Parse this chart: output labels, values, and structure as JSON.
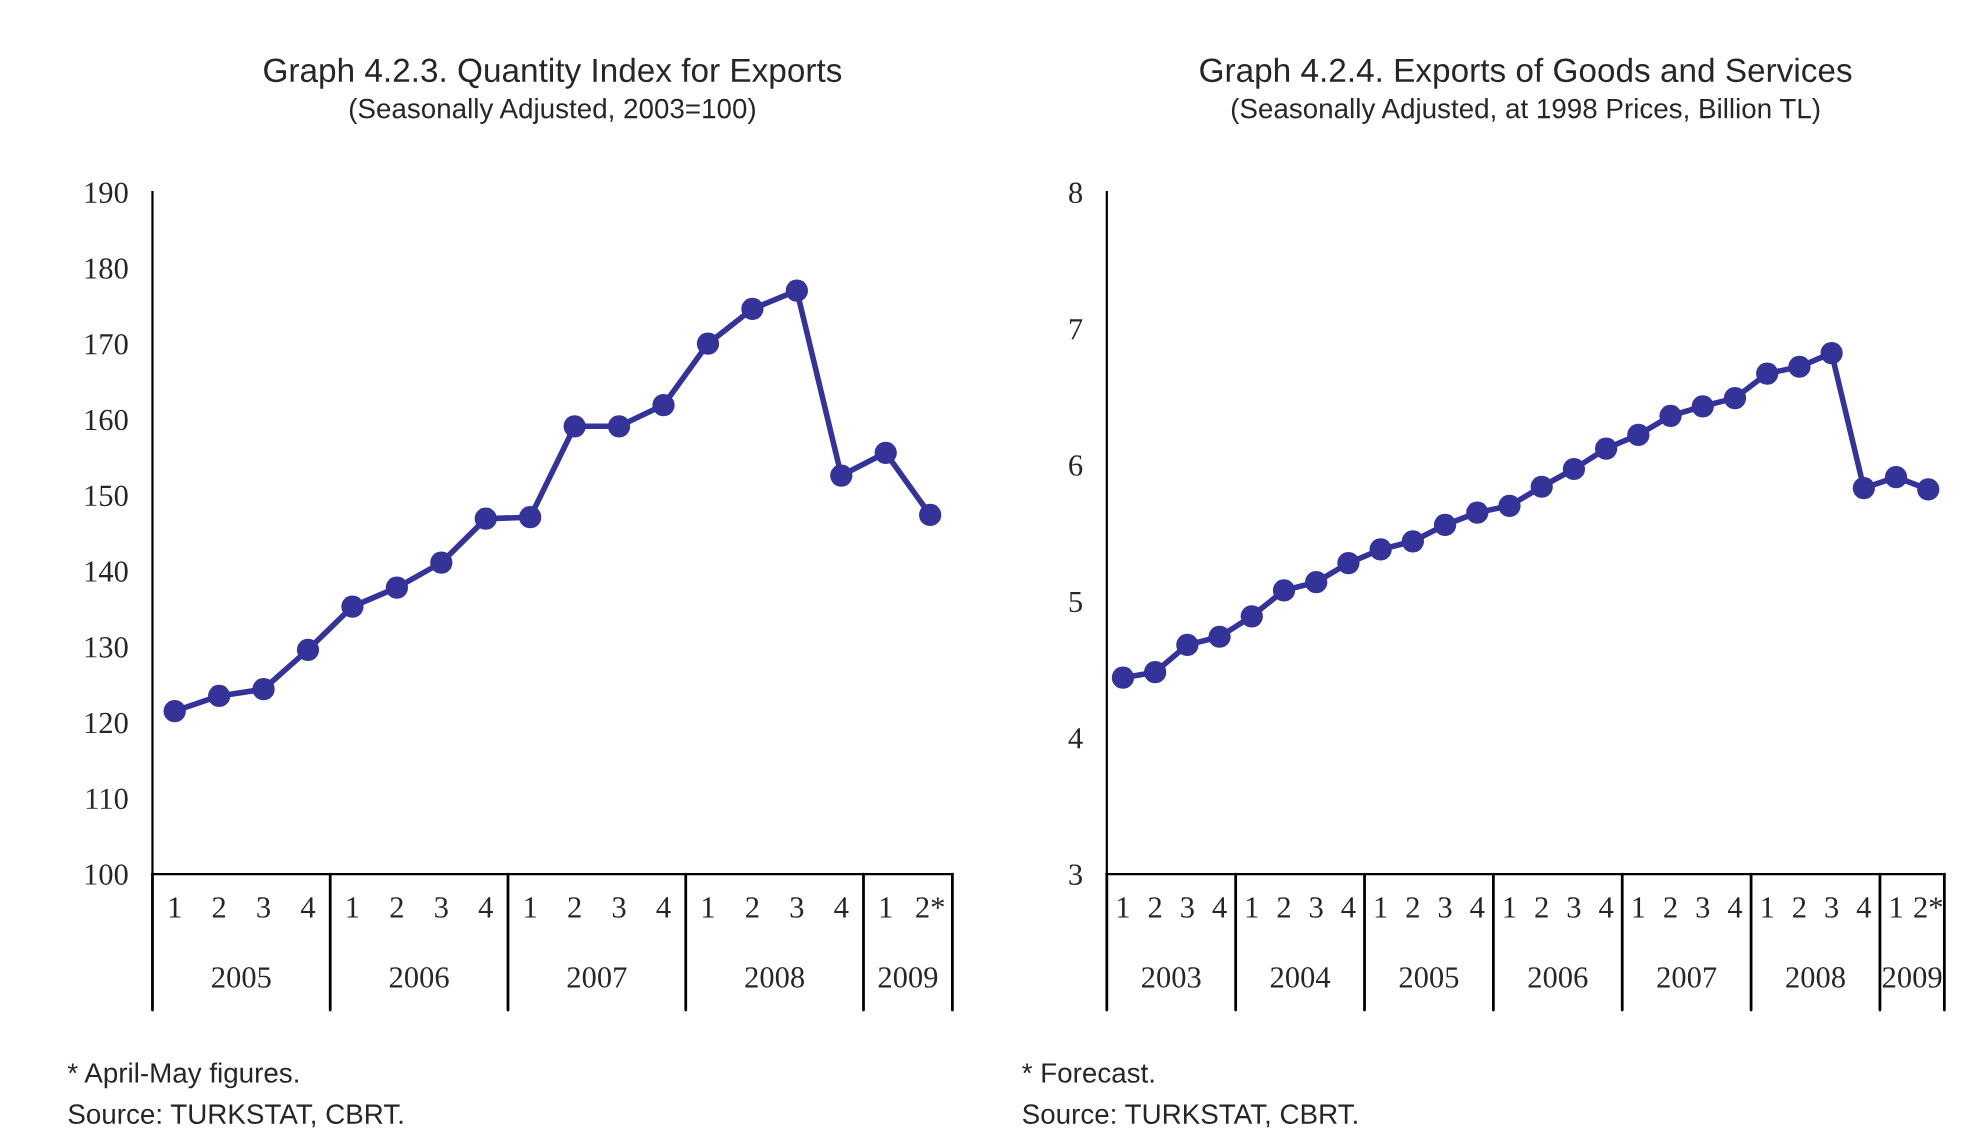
{
  "chart_data": [
    {
      "type": "line",
      "title": "Graph 4.2.3. Quantity Index for Exports",
      "subtitle": "(Seasonally Adjusted, 2003=100)",
      "categories": [
        "1",
        "2",
        "3",
        "4",
        "1",
        "2",
        "3",
        "4",
        "1",
        "2",
        "3",
        "4",
        "1",
        "2",
        "3",
        "4",
        "1",
        "2*"
      ],
      "series": [
        {
          "color": "#333399",
          "values": [
            121.5,
            123.5,
            124.4,
            129.6,
            135.3,
            137.8,
            141.1,
            146.9,
            147.1,
            159.1,
            159.1,
            161.9,
            170.0,
            174.6,
            177.0,
            152.6,
            155.6,
            147.4
          ]
        }
      ],
      "ylim": [
        100,
        190
      ],
      "yticks": [
        100,
        110,
        120,
        130,
        140,
        150,
        160,
        170,
        180,
        190
      ],
      "marker": "circle",
      "line_style": "solid",
      "grid": false,
      "annotations": [
        "2005",
        "2006",
        "2007",
        "2008",
        "2009",
        "* April-May figures.",
        "Source: TURKSTAT, CBRT."
      ]
    },
    {
      "type": "line",
      "title": "Graph 4.2.4. Exports of Goods and Services",
      "subtitle": "(Seasonally Adjusted, at 1998 Prices, Billion TL)",
      "categories": [
        "1",
        "2",
        "3",
        "4",
        "1",
        "2",
        "3",
        "4",
        "1",
        "2",
        "3",
        "4",
        "1",
        "2",
        "3",
        "4",
        "1",
        "2",
        "3",
        "4",
        "1",
        "2",
        "3",
        "4",
        "1",
        "2*"
      ],
      "series": [
        {
          "color": "#333399",
          "values": [
            4.44,
            4.48,
            4.68,
            4.74,
            4.89,
            5.08,
            5.14,
            5.28,
            5.38,
            5.44,
            5.56,
            5.65,
            5.7,
            5.84,
            5.97,
            6.12,
            6.22,
            6.36,
            6.43,
            6.49,
            6.67,
            6.72,
            6.82,
            5.83,
            5.91,
            5.82
          ]
        }
      ],
      "ylim": [
        3,
        8
      ],
      "yticks": [
        3,
        4,
        5,
        6,
        7,
        8
      ],
      "marker": "circle",
      "line_style": "solid",
      "grid": false,
      "annotations": [
        "2003",
        "2004",
        "2005",
        "2006",
        "2007",
        "2008",
        "2009",
        "* Forecast.",
        "Source: TURKSTAT, CBRT."
      ]
    }
  ]
}
